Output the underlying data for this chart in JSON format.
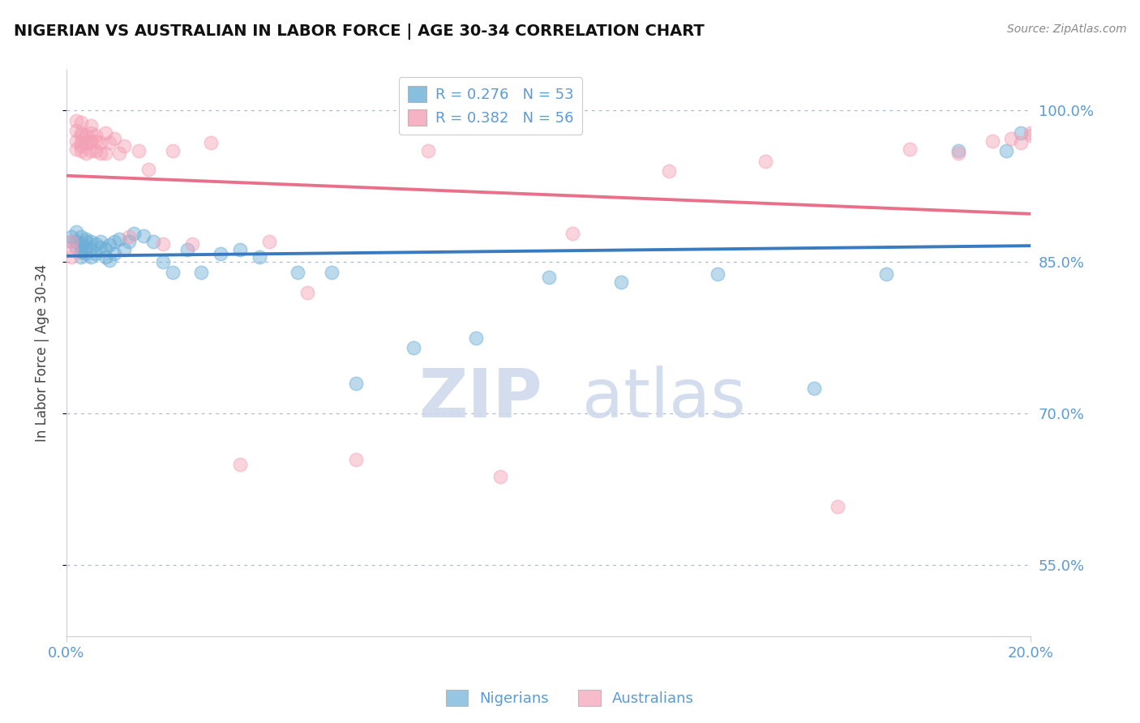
{
  "title": "NIGERIAN VS AUSTRALIAN IN LABOR FORCE | AGE 30-34 CORRELATION CHART",
  "source": "Source: ZipAtlas.com",
  "ylabel": "In Labor Force | Age 30-34",
  "yticks": [
    0.55,
    0.7,
    0.85,
    1.0
  ],
  "ytick_labels": [
    "55.0%",
    "70.0%",
    "85.0%",
    "100.0%"
  ],
  "xmin": 0.0,
  "xmax": 0.2,
  "ymin": 0.48,
  "ymax": 1.04,
  "blue_R": 0.276,
  "blue_N": 53,
  "pink_R": 0.382,
  "pink_N": 56,
  "blue_color": "#6baed6",
  "pink_color": "#f4a0b5",
  "blue_line_color": "#3a7bbf",
  "pink_line_color": "#e8708a",
  "legend_label_blue": "Nigerians",
  "legend_label_pink": "Australians",
  "blue_scatter_x": [
    0.001,
    0.001,
    0.002,
    0.002,
    0.002,
    0.003,
    0.003,
    0.003,
    0.003,
    0.003,
    0.004,
    0.004,
    0.004,
    0.004,
    0.005,
    0.005,
    0.005,
    0.006,
    0.006,
    0.007,
    0.007,
    0.008,
    0.008,
    0.009,
    0.009,
    0.01,
    0.01,
    0.011,
    0.012,
    0.013,
    0.014,
    0.016,
    0.018,
    0.02,
    0.022,
    0.025,
    0.028,
    0.032,
    0.036,
    0.04,
    0.048,
    0.055,
    0.06,
    0.072,
    0.085,
    0.1,
    0.115,
    0.135,
    0.155,
    0.17,
    0.185,
    0.195,
    0.198
  ],
  "blue_scatter_y": [
    0.87,
    0.875,
    0.865,
    0.87,
    0.88,
    0.86,
    0.868,
    0.875,
    0.862,
    0.855,
    0.87,
    0.858,
    0.865,
    0.873,
    0.862,
    0.87,
    0.855,
    0.868,
    0.858,
    0.87,
    0.865,
    0.855,
    0.863,
    0.867,
    0.852,
    0.87,
    0.858,
    0.873,
    0.862,
    0.87,
    0.878,
    0.876,
    0.87,
    0.85,
    0.84,
    0.862,
    0.84,
    0.858,
    0.862,
    0.855,
    0.84,
    0.84,
    0.73,
    0.765,
    0.775,
    0.835,
    0.83,
    0.838,
    0.725,
    0.838,
    0.96,
    0.96,
    0.978
  ],
  "pink_scatter_x": [
    0.001,
    0.001,
    0.001,
    0.002,
    0.002,
    0.002,
    0.002,
    0.003,
    0.003,
    0.003,
    0.003,
    0.003,
    0.003,
    0.004,
    0.004,
    0.004,
    0.005,
    0.005,
    0.005,
    0.005,
    0.005,
    0.006,
    0.006,
    0.006,
    0.007,
    0.007,
    0.008,
    0.008,
    0.009,
    0.01,
    0.011,
    0.012,
    0.013,
    0.015,
    0.017,
    0.02,
    0.022,
    0.026,
    0.03,
    0.036,
    0.042,
    0.05,
    0.06,
    0.075,
    0.09,
    0.105,
    0.125,
    0.145,
    0.16,
    0.175,
    0.185,
    0.192,
    0.196,
    0.198,
    0.2,
    0.2
  ],
  "pink_scatter_y": [
    0.87,
    0.862,
    0.855,
    0.99,
    0.98,
    0.97,
    0.962,
    0.975,
    0.965,
    0.988,
    0.978,
    0.96,
    0.968,
    0.975,
    0.958,
    0.968,
    0.985,
    0.97,
    0.96,
    0.978,
    0.968,
    0.97,
    0.96,
    0.975,
    0.968,
    0.958,
    0.978,
    0.958,
    0.968,
    0.972,
    0.958,
    0.965,
    0.875,
    0.96,
    0.942,
    0.868,
    0.96,
    0.868,
    0.968,
    0.65,
    0.87,
    0.82,
    0.655,
    0.96,
    0.638,
    0.878,
    0.94,
    0.95,
    0.608,
    0.962,
    0.958,
    0.97,
    0.972,
    0.968,
    0.975,
    0.978
  ]
}
